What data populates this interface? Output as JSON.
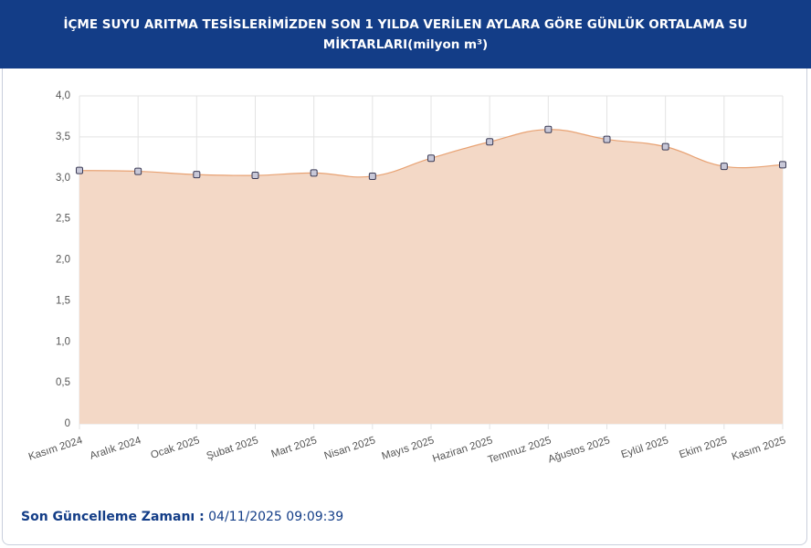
{
  "chart_data": {
    "type": "line",
    "title": "İÇME SUYU ARITMA TESİSLERİMİZDEN SON 1 YILDA VERİLEN AYLARA GÖRE GÜNLÜK ORTALAMA SU MİKTARLARI(milyon m³)",
    "categories": [
      "Kasım 2024",
      "Aralık 2024",
      "Ocak 2025",
      "Şubat 2025",
      "Mart 2025",
      "Nisan 2025",
      "Mayıs 2025",
      "Haziran 2025",
      "Temmuz 2025",
      "Ağustos 2025",
      "Eylül 2025",
      "Ekim 2025",
      "Kasım 2025"
    ],
    "values": [
      3.09,
      3.08,
      3.04,
      3.03,
      3.06,
      3.02,
      3.24,
      3.44,
      3.59,
      3.47,
      3.38,
      3.14,
      3.16
    ],
    "color": "#e8a273",
    "fill": "#f3d8c6",
    "marker_color": "#c8c8d8",
    "ylim": [
      0,
      4
    ],
    "yticks": [
      0,
      {
        "value": 0.5,
        "label": "0,5"
      },
      {
        "value": 1,
        "label": "1,0"
      },
      {
        "value": 1.5,
        "label": "1,5"
      },
      {
        "value": 2,
        "label": "2,0"
      },
      {
        "value": 2.5,
        "label": "2,5"
      },
      {
        "value": 3,
        "label": "3,0"
      },
      {
        "value": 3.5,
        "label": "3,5"
      },
      {
        "value": 4,
        "label": "4,0"
      }
    ],
    "grid": true
  },
  "footer": {
    "label": "Son Güncelleme Zamanı :",
    "value": "04/11/2025 09:09:39"
  }
}
